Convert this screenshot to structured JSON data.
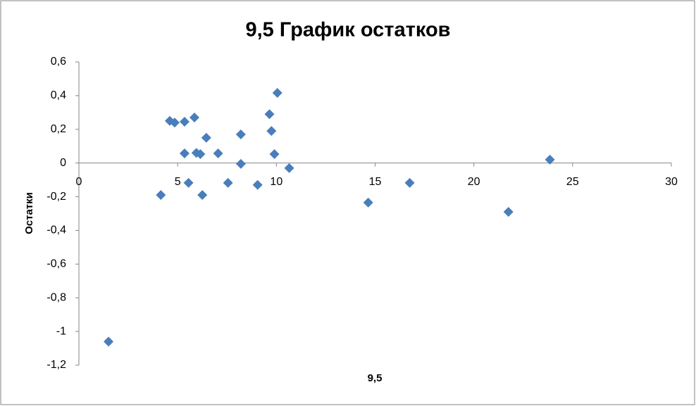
{
  "chart_data": {
    "type": "scatter",
    "title": "9,5 График остатков",
    "x_label": "9,5",
    "y_label": "Остатки",
    "x": [
      1.5,
      4.15,
      4.6,
      4.85,
      5.35,
      5.35,
      5.55,
      5.85,
      5.95,
      6.15,
      6.25,
      6.45,
      7.05,
      7.55,
      8.2,
      8.2,
      9.05,
      9.65,
      9.75,
      10.05,
      9.9,
      10.65,
      14.65,
      16.75,
      21.75,
      23.85
    ],
    "values": [
      -1.06,
      -0.19,
      0.25,
      0.24,
      0.245,
      0.057,
      -0.118,
      0.27,
      0.06,
      0.053,
      -0.19,
      0.15,
      0.057,
      -0.118,
      0.17,
      -0.005,
      -0.13,
      0.29,
      0.19,
      0.416,
      0.053,
      -0.03,
      -0.235,
      -0.118,
      -0.29,
      0.02
    ],
    "color": "#4a7ebb",
    "xlim": [
      0,
      30
    ],
    "xticks": [
      0,
      5,
      10,
      15,
      20,
      25,
      30
    ],
    "ylim": [
      -1.2,
      0.6
    ],
    "yticks": [
      {
        "value": -1.2,
        "label": "-1,2"
      },
      -1,
      {
        "value": -0.8,
        "label": "-0,8"
      },
      {
        "value": -0.6,
        "label": "-0,6"
      },
      {
        "value": -0.4,
        "label": "-0,4"
      },
      {
        "value": -0.2,
        "label": "-0,2"
      },
      0,
      {
        "value": 0.2,
        "label": "0,2"
      },
      {
        "value": 0.4,
        "label": "0,4"
      },
      {
        "value": 0.6,
        "label": "0,6"
      }
    ],
    "grid": false
  }
}
